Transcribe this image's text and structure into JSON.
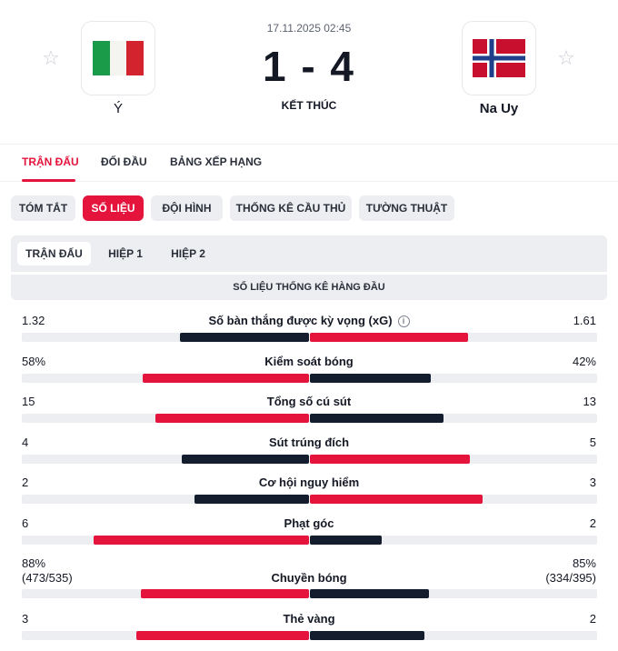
{
  "match": {
    "datetime": "17.11.2025 02:45",
    "score": "1 - 4",
    "status": "KẾT THÚC",
    "home": {
      "name": "Ý",
      "flag": "italy-flag-icon"
    },
    "away": {
      "name": "Na Uy",
      "flag": "norway-flag-icon"
    }
  },
  "colors": {
    "accent": "#e5143c",
    "dark": "#131d2e",
    "track": "#eceef1"
  },
  "main_tabs": [
    "TRẬN ĐẤU",
    "ĐỐI ĐẦU",
    "BẢNG XẾP HẠNG"
  ],
  "sub_tabs": [
    "TÓM TẮT",
    "SỐ LIỆU",
    "ĐỘI HÌNH",
    "THỐNG KÊ CẦU THỦ",
    "TƯỜNG THUẬT"
  ],
  "periods": [
    "TRẬN ĐẤU",
    "HIỆP 1",
    "HIỆP 2"
  ],
  "section_title": "SỐ LIỆU THỐNG KÊ HÀNG ĐẦU",
  "stats": [
    {
      "label": "Số bàn thắng được kỳ vọng (xG)",
      "home": "1.32",
      "away": "1.61",
      "home_val": 1.32,
      "away_val": 1.61,
      "info": true
    },
    {
      "label": "Kiểm soát bóng",
      "home": "58%",
      "away": "42%",
      "home_val": 58,
      "away_val": 42
    },
    {
      "label": "Tổng số cú sút",
      "home": "15",
      "away": "13",
      "home_val": 15,
      "away_val": 13
    },
    {
      "label": "Sút trúng đích",
      "home": "4",
      "away": "5",
      "home_val": 4,
      "away_val": 5
    },
    {
      "label": "Cơ hội nguy hiểm",
      "home": "2",
      "away": "3",
      "home_val": 2,
      "away_val": 3
    },
    {
      "label": "Phạt góc",
      "home": "6",
      "away": "2",
      "home_val": 6,
      "away_val": 2
    },
    {
      "label": "Chuyền bóng",
      "home": "88%",
      "away": "85%",
      "home_sub": "(473/535)",
      "away_sub": "(334/395)",
      "home_val": 473,
      "away_val": 334
    },
    {
      "label": "Thẻ vàng",
      "home": "3",
      "away": "2",
      "home_val": 3,
      "away_val": 2
    }
  ]
}
